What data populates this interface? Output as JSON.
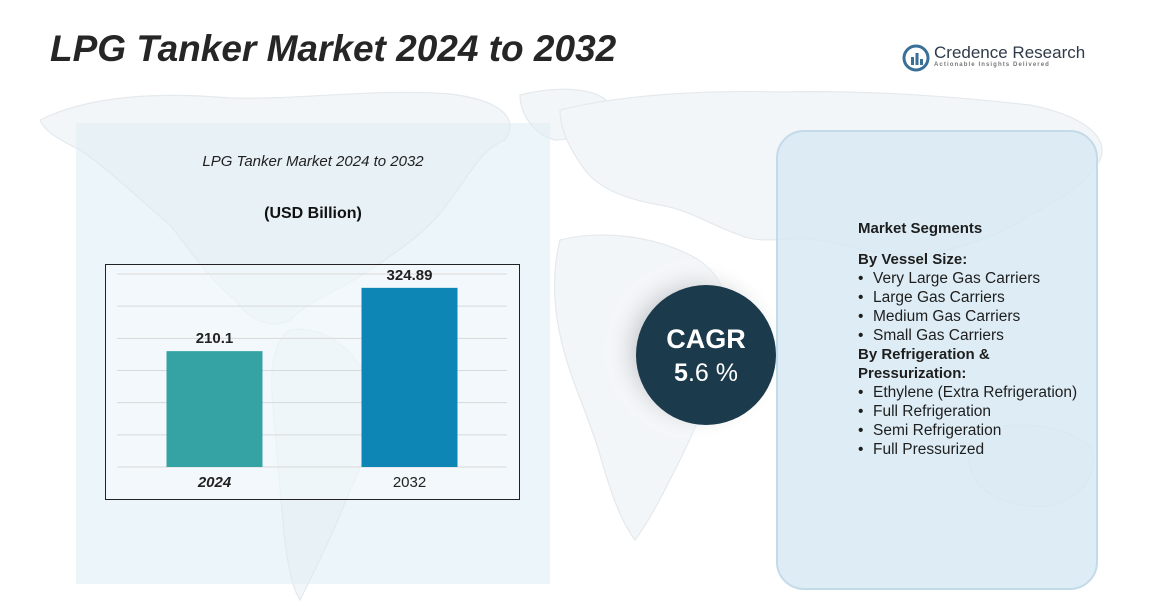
{
  "page": {
    "title": "LPG Tanker Market 2024 to 2032"
  },
  "brand": {
    "name": "Credence Research",
    "tagline": "Actionable Insights Delivered",
    "icon": "credence-logo-icon"
  },
  "chart_data": {
    "type": "bar",
    "title": "LPG Tanker Market 2024 to 2032",
    "unit_label": "(USD Billion)",
    "categories": [
      "2024",
      "2032"
    ],
    "values": [
      210.1,
      324.89
    ],
    "value_labels": [
      "210.1",
      "324.89"
    ],
    "colors": [
      "#35a3a3",
      "#0e86b5"
    ],
    "ylim": [
      0,
      350
    ],
    "grid": true,
    "legend": "none"
  },
  "cagr": {
    "label": "CAGR",
    "value_whole": "5",
    "value_rest": ".6 %",
    "color": "#1b3a4b"
  },
  "segments": {
    "heading": "Market Segments",
    "groups": [
      {
        "label": "By Vessel Size:",
        "items": [
          "Very Large Gas Carriers",
          "Large Gas Carriers",
          "Medium Gas Carriers",
          "Small Gas Carriers"
        ]
      },
      {
        "label": "By Refrigeration & Pressurization:",
        "items": [
          "Ethylene (Extra Refrigeration)",
          "Full Refrigeration",
          "Semi Refrigeration",
          "Full Pressurized"
        ]
      }
    ]
  }
}
